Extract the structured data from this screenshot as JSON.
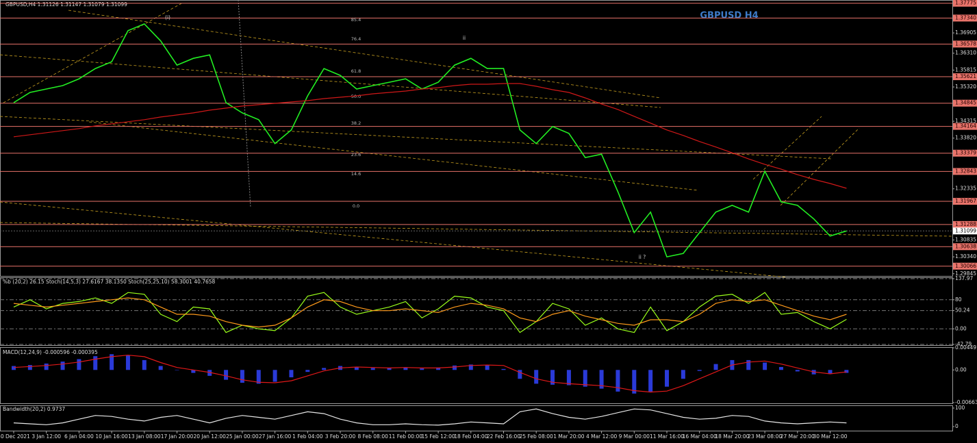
{
  "chart_data": [
    {
      "type": "line",
      "header": "GBPUSD,H4  1.31126 1.31147 1.31079 1.31099",
      "title": "GBPUSD H4",
      "categories": [
        "30 Dec 2021",
        null,
        "3 Jan 12:00",
        null,
        "6 Jan 04:00",
        null,
        "10 Jan 16:00",
        null,
        "13 Jan 08:00",
        null,
        "17 Jan 20:00",
        null,
        "20 Jan 12:00",
        null,
        "25 Jan 00:00",
        null,
        "27 Jan 16:00",
        null,
        "1 Feb 04:00",
        null,
        "3 Feb 20:00",
        null,
        "8 Feb 08:00",
        null,
        "11 Feb 00:00",
        null,
        "15 Feb 12:00",
        null,
        "18 Feb 04:00",
        null,
        "22 Feb 16:00",
        null,
        "25 Feb 08:00",
        null,
        "1 Mar 20:00",
        null,
        "4 Mar 12:00",
        null,
        "9 Mar 00:00",
        null,
        "11 Mar 16:00",
        null,
        "16 Mar 04:00",
        null,
        "18 Mar 20:00",
        null,
        "23 Mar 08:00",
        null,
        "27 Mar 20:00",
        null,
        "30 Mar 12:00",
        null
      ],
      "series": [
        {
          "color": "#22ee22",
          "values": [
            1.3486,
            1.3516,
            1.3526,
            1.3536,
            1.3556,
            1.3586,
            1.3606,
            1.3697,
            1.3717,
            1.3667,
            1.3596,
            1.3616,
            1.3626,
            1.3486,
            1.3456,
            1.3436,
            1.3366,
            1.3406,
            1.3506,
            1.3586,
            1.3566,
            1.3526,
            1.3536,
            1.3546,
            1.3556,
            1.3526,
            1.3546,
            1.3596,
            1.3616,
            1.3586,
            1.3586,
            1.3406,
            1.3366,
            1.3416,
            1.3396,
            1.3325,
            1.3335,
            1.3225,
            1.3105,
            1.3165,
            1.3034,
            1.3044,
            1.3105,
            1.3165,
            1.3185,
            1.3165,
            1.3285,
            1.3195,
            1.3185,
            1.3145,
            1.3095,
            1.31099
          ]
        },
        {
          "color": "#d01818",
          "values": [
            1.3386,
            1.3392,
            1.3398,
            1.3404,
            1.341,
            1.3418,
            1.3424,
            1.343,
            1.3436,
            1.3444,
            1.345,
            1.3456,
            1.3464,
            1.347,
            1.3476,
            1.348,
            1.3484,
            1.3488,
            1.3492,
            1.3498,
            1.3502,
            1.3506,
            1.3512,
            1.3516,
            1.352,
            1.3526,
            1.353,
            1.3536,
            1.354,
            1.354,
            1.3542,
            1.3542,
            1.3534,
            1.3524,
            1.3516,
            1.35,
            1.3482,
            1.3466,
            1.3446,
            1.3426,
            1.3406,
            1.339,
            1.3372,
            1.3356,
            1.3339,
            1.3321,
            1.3305,
            1.3291,
            1.3275,
            1.3261,
            1.3249,
            1.3235
          ]
        }
      ],
      "ylim": [
        1.2978,
        1.3787
      ],
      "yticks": [
        1.36905,
        {
          "value": 1.3631,
          "label": "1.36310"
        },
        1.35815,
        {
          "value": 1.3532,
          "label": "1.35320"
        },
        1.34315,
        {
          "value": 1.3382,
          "label": "1.33820"
        },
        1.32335,
        1.30835,
        {
          "value": 1.3034,
          "label": "1.30340"
        },
        1.29845
      ],
      "levels": [
        1.37775,
        {
          "value": 1.3734,
          "label": "1.37340"
        },
        1.36578,
        1.35621,
        1.34845,
        1.34164,
        1.33379,
        1.32843,
        1.31967,
        1.31288,
        1.30638,
        1.30066
      ],
      "level_color": "#e8736a",
      "last_price": 1.31099,
      "fib_labels": [
        "85.4",
        "76.4",
        "61.8",
        "50.0",
        "38.2",
        "23.6",
        "14.6",
        "0.0"
      ],
      "annotations": [
        "(i)",
        "ii",
        "ii ?"
      ]
    },
    {
      "type": "line",
      "label": "%b (20,2) 26.15  Stoch(14,5,3) 27.6167 38.1350  Stoch(25,25,10) 58.3001 40.7658",
      "series": [
        {
          "color": "#9aff1a",
          "values": [
            60,
            80,
            55,
            70,
            75,
            85,
            70,
            100,
            95,
            40,
            20,
            60,
            55,
            -10,
            10,
            0,
            -5,
            30,
            90,
            100,
            60,
            40,
            50,
            60,
            75,
            30,
            55,
            90,
            85,
            60,
            50,
            -10,
            20,
            70,
            55,
            10,
            30,
            0,
            -10,
            60,
            -5,
            20,
            60,
            90,
            95,
            70,
            100,
            40,
            45,
            20,
            0,
            26.15
          ]
        },
        {
          "color": "#ff9a1a",
          "values": [
            70,
            65,
            60,
            65,
            70,
            75,
            80,
            85,
            80,
            60,
            40,
            40,
            35,
            20,
            10,
            5,
            10,
            30,
            60,
            80,
            75,
            60,
            50,
            50,
            55,
            50,
            45,
            60,
            70,
            65,
            55,
            30,
            20,
            40,
            50,
            35,
            25,
            15,
            10,
            25,
            25,
            20,
            40,
            70,
            80,
            75,
            80,
            65,
            50,
            35,
            25,
            40
          ]
        }
      ],
      "ylim": [
        -42.79,
        137.97
      ],
      "yticks": [
        137.97,
        80,
        50.24,
        {
          "value": 0,
          "label": "0.00"
        },
        -42.79
      ]
    },
    {
      "type": "line",
      "label": "MACD(12,24,9) -0.000596 -0.000395",
      "series": [
        {
          "color": "#2a3ad8",
          "style": "histogram",
          "values": [
            0.0008,
            0.001,
            0.0013,
            0.0017,
            0.0022,
            0.0028,
            0.0032,
            0.003,
            0.002,
            0.0008,
            0,
            -0.0006,
            -0.0012,
            -0.002,
            -0.0026,
            -0.0028,
            -0.0024,
            -0.0015,
            -0.0004,
            0.0004,
            0.0008,
            0.0006,
            0.0004,
            0.0004,
            0.0005,
            0.0003,
            0.0005,
            0.0009,
            0.0011,
            0.001,
            0.0002,
            -0.0018,
            -0.0028,
            -0.003,
            -0.0031,
            -0.0034,
            -0.0038,
            -0.0044,
            -0.0048,
            -0.0044,
            -0.0034,
            -0.0018,
            -0.0002,
            0.0012,
            0.002,
            0.002,
            0.0015,
            0.0006,
            -0.0003,
            -0.0009,
            -0.0008,
            -0.000596
          ]
        },
        {
          "color": "#e01818",
          "style": "line",
          "values": [
            0.0005,
            0.0007,
            0.0009,
            0.0012,
            0.0016,
            0.0022,
            0.0027,
            0.003,
            0.0027,
            0.0015,
            0.0005,
            0,
            -0.0005,
            -0.0012,
            -0.002,
            -0.0025,
            -0.0026,
            -0.0022,
            -0.0012,
            -0.0002,
            0.0004,
            0.0006,
            0.0005,
            0.0004,
            0.0005,
            0.0004,
            0.0004,
            0.0006,
            0.0009,
            0.001,
            0.0009,
            -0.0005,
            -0.0018,
            -0.0025,
            -0.0028,
            -0.003,
            -0.0032,
            -0.0036,
            -0.0042,
            -0.0045,
            -0.0043,
            -0.0032,
            -0.0018,
            -0.0004,
            0.001,
            0.0016,
            0.0018,
            0.0012,
            0.0004,
            -0.0004,
            -0.0008,
            -0.000395
          ]
        }
      ],
      "ylim": [
        -0.006636,
        0.004491
      ],
      "yticks": [
        0.004491,
        {
          "value": 0,
          "label": "0.00"
        },
        -0.006636
      ]
    },
    {
      "type": "line",
      "label": "Bandwidth(20,2) 0.9737",
      "series": [
        {
          "color": "#e8e8e8",
          "values": [
            20,
            15,
            10,
            20,
            40,
            60,
            55,
            40,
            30,
            50,
            60,
            40,
            20,
            45,
            60,
            50,
            40,
            60,
            80,
            70,
            40,
            20,
            10,
            10,
            15,
            10,
            8,
            15,
            25,
            20,
            15,
            80,
            95,
            70,
            50,
            40,
            55,
            75,
            95,
            90,
            70,
            50,
            40,
            45,
            60,
            55,
            30,
            20,
            15,
            20,
            25,
            20
          ]
        }
      ],
      "ylim": [
        -22,
        111
      ],
      "yticks": [
        100,
        0
      ]
    }
  ]
}
